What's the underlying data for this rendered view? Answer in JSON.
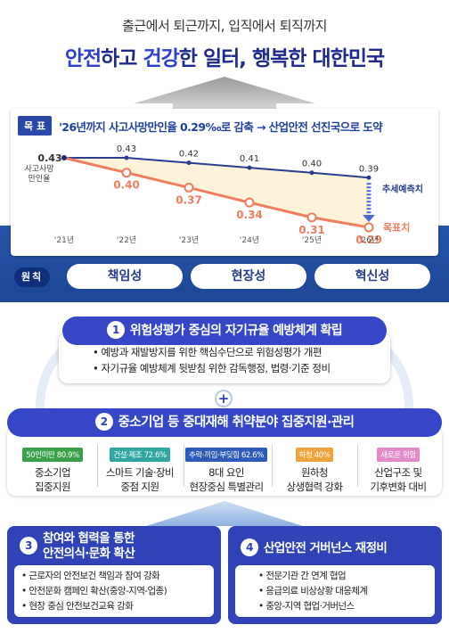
{
  "header": {
    "subtitle": "출근에서 퇴근까지, 입직에서 퇴직까지",
    "title_part1": "안전",
    "title_part2": "하고 ",
    "title_part3": "건강",
    "title_part4": "한 ",
    "title_part5": "일터, 행복한 대한민국"
  },
  "goal": {
    "tag": "목 표",
    "text": "'26년까지 사고사망만인율 0.29‰로 감축 → 산업안전 선진국으로 도약"
  },
  "chart_data": {
    "type": "line",
    "categories": [
      "'21년",
      "'22년",
      "'23년",
      "'24년",
      "'25년",
      "'26년"
    ],
    "ylabel": "사고사망\n만인율",
    "series": [
      {
        "name": "추세예측치",
        "values": [
          0.43,
          0.43,
          0.42,
          0.41,
          0.4,
          0.39
        ],
        "color": "#2a3d8f"
      },
      {
        "name": "목표치",
        "values": [
          0.43,
          0.4,
          0.37,
          0.34,
          0.31,
          0.29
        ],
        "color": "#ef7d5e"
      }
    ],
    "ylabel_line1": "사고사망",
    "ylabel_line2": "만인율",
    "legend_trend": "추세예측치",
    "legend_target": "목표치"
  },
  "principles": {
    "label": "원칙",
    "items": [
      "책임성",
      "현장성",
      "혁신성"
    ]
  },
  "section1": {
    "num": "1",
    "title": "위험성평가 중심의 자기규율 예방체계 확립",
    "bullets": [
      "• 예방과 재발방지를 위한 핵심수단으로 위험성평가 개편",
      "• 자기규율 예방체계 뒷받침 위한 감독행정, 법령·기준 정비"
    ],
    "plus": "+"
  },
  "section2": {
    "num": "2",
    "title": "중소기업 등 중대재해 취약분야 집중지원·관리",
    "cols": [
      {
        "tag": "50인미만 80.9%",
        "line1": "중소기업",
        "line2": "집중지원",
        "color": "#3aa14a"
      },
      {
        "tag": "건설·제조 72.6%",
        "line1": "스마트 기술·장비",
        "line2": "중점 지원",
        "color": "#2fa7a0"
      },
      {
        "tag": "추락·끼임·부딪힘 62.6%",
        "line1": "8대 요인",
        "line2": "현장중심 특별관리",
        "color": "#2d5bb8"
      },
      {
        "tag": "하청 40%",
        "line1": "원하청",
        "line2": "상생협력 강화",
        "color": "#f0a33a"
      },
      {
        "tag": "새로운 위험",
        "line1": "산업구조 및",
        "line2": "기후변화 대비",
        "color": "#e58ac9"
      }
    ]
  },
  "section3": {
    "num": "3",
    "title_line1": "참여와 협력을 통한",
    "title_line2": "안전의식·문화 확산",
    "bullets": [
      "• 근로자의 안전보건 책임과 참여 강화",
      "• 안전문화 캠페인 확산(중앙-지역-업종)",
      "• 현장 중심 안전보건교육 강화"
    ]
  },
  "section4": {
    "num": "4",
    "title": "산업안전 거버넌스 재정비",
    "bullets": [
      "• 전문기관 간 연계 협업",
      "• 응급의료 비상상황 대응체계",
      "• 중앙-지역 협업·거버넌스"
    ]
  }
}
